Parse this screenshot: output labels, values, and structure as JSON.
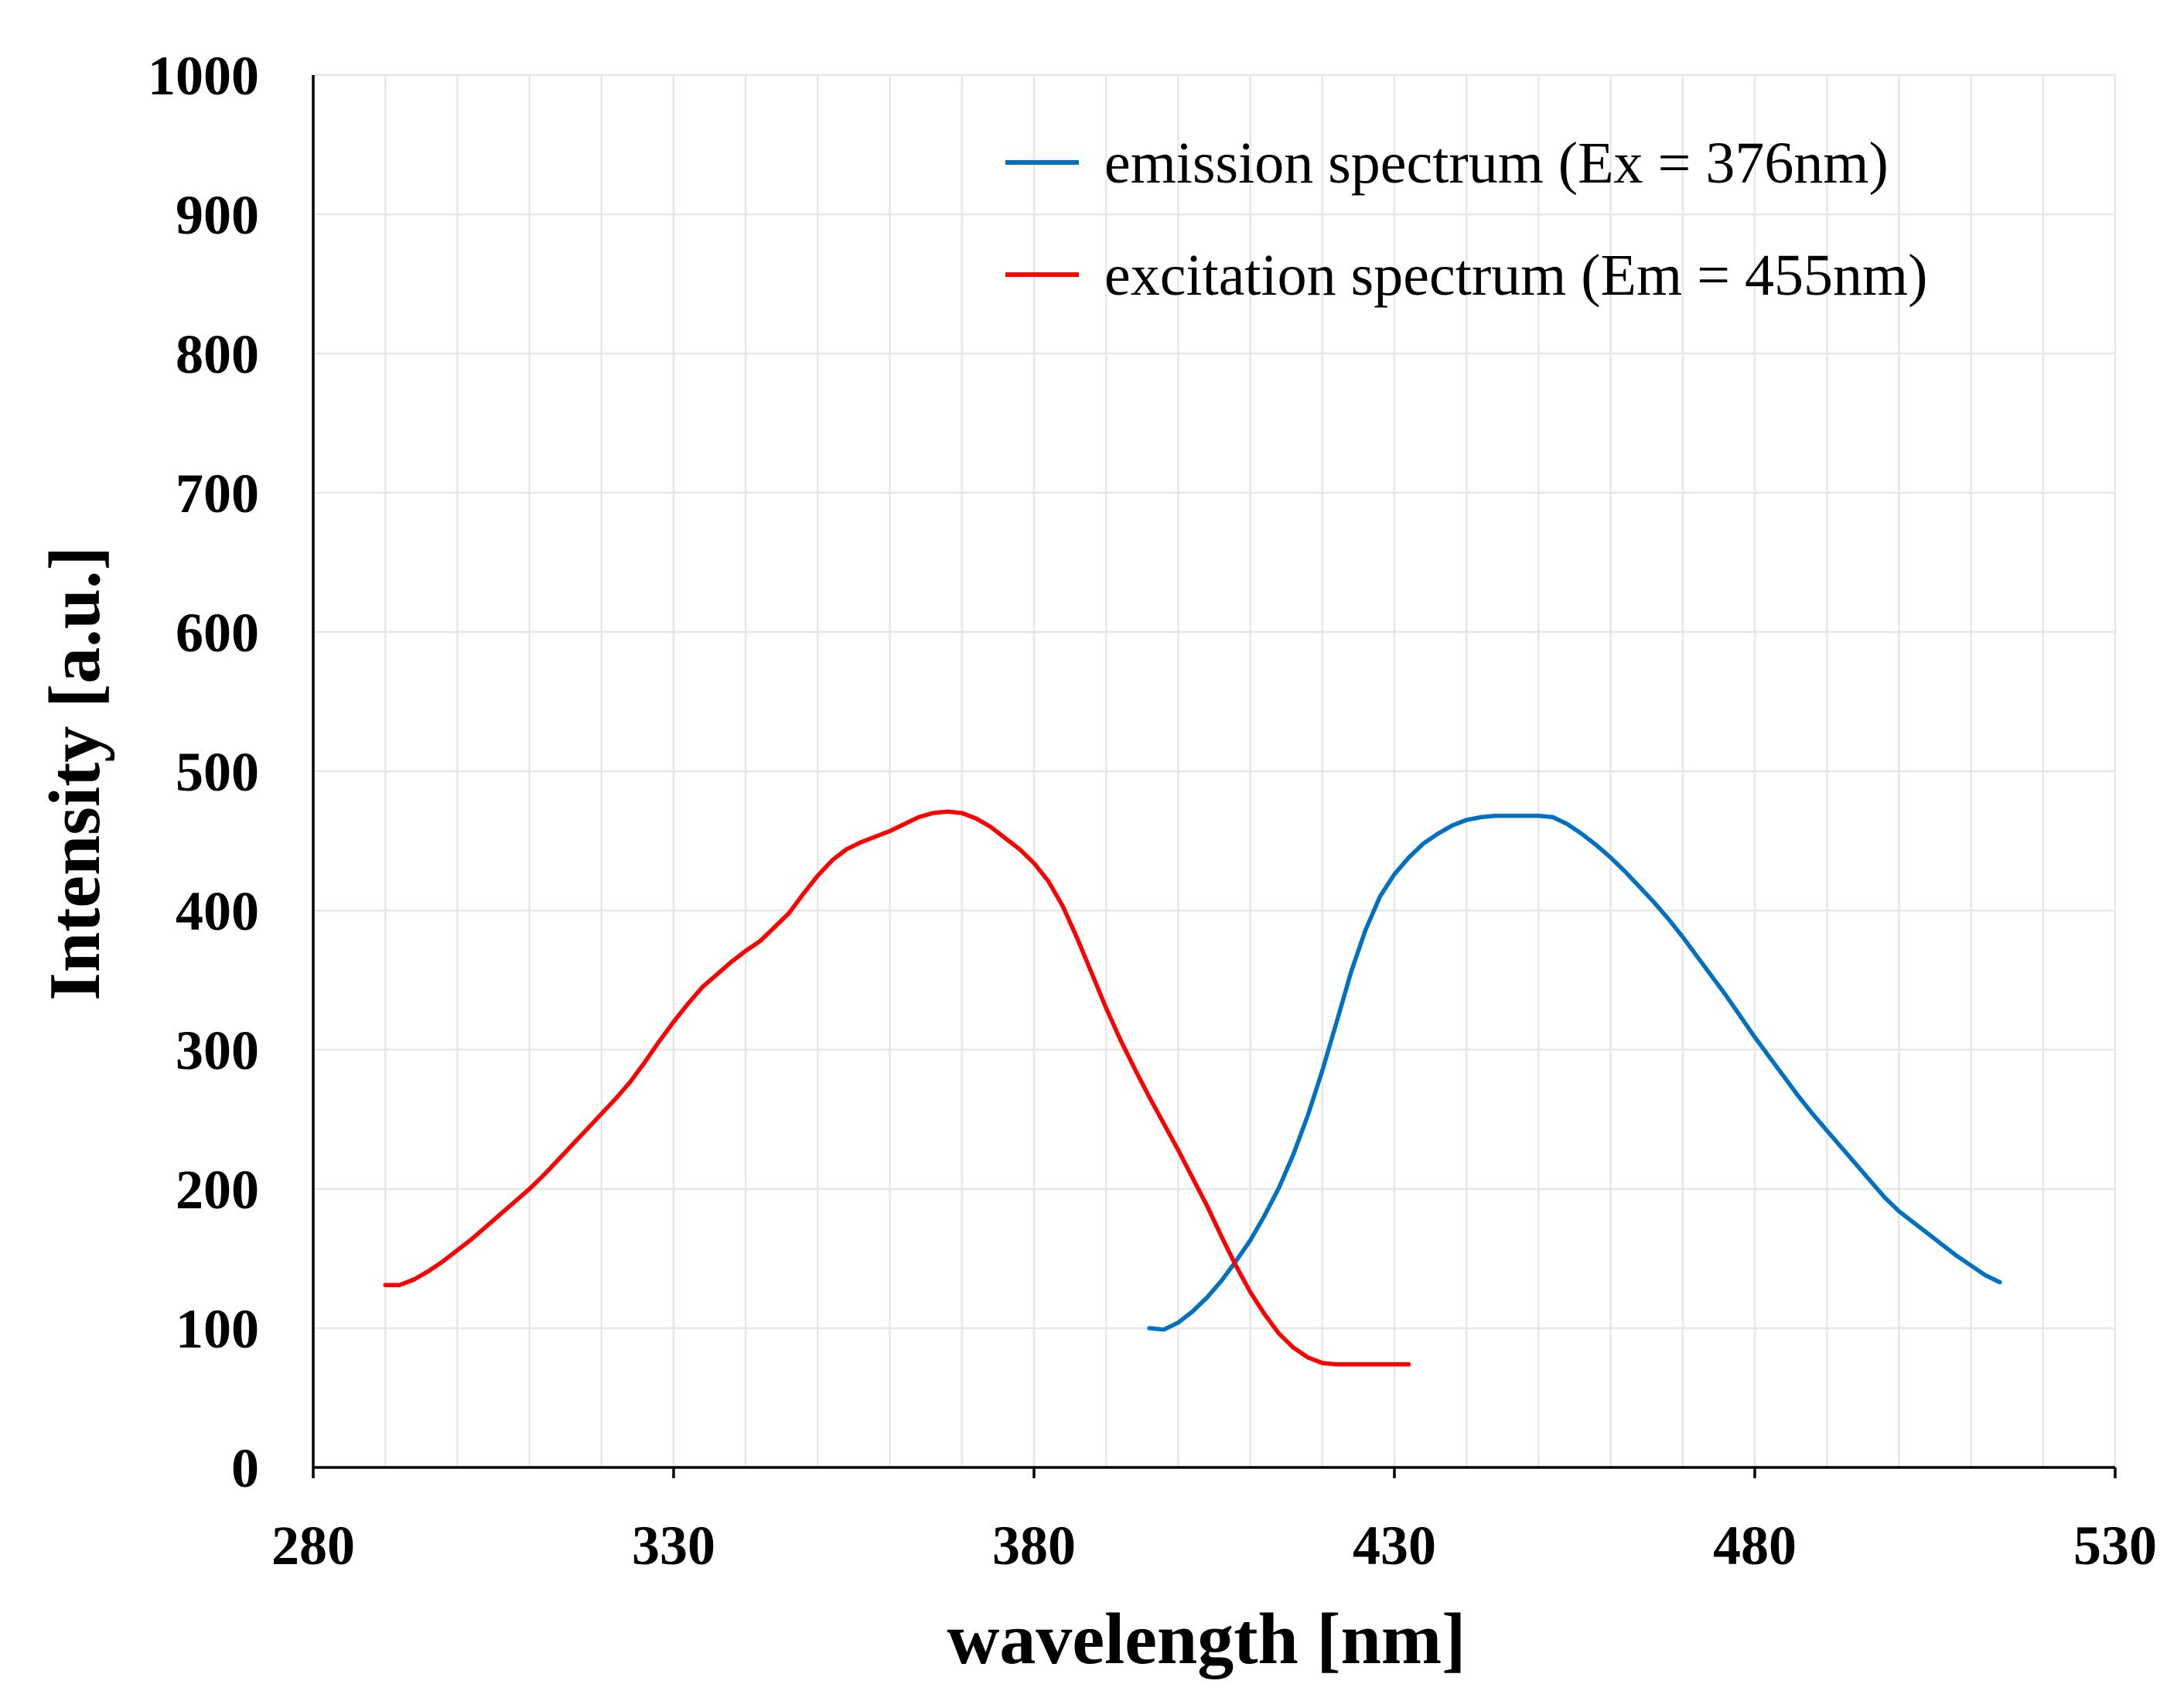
{
  "chart_data": {
    "type": "line",
    "title": "",
    "xlabel": "wavelength [nm]",
    "ylabel": "Intensity [a.u.]",
    "xlim": [
      280,
      530
    ],
    "ylim": [
      0,
      1000
    ],
    "x_major_ticks": [
      280,
      330,
      380,
      430,
      480,
      530
    ],
    "y_major_ticks": [
      0,
      100,
      200,
      300,
      400,
      500,
      600,
      700,
      800,
      900,
      1000
    ],
    "x_minor_step": 10,
    "grid": true,
    "legend_position": "top-right",
    "series": [
      {
        "name": "emission spectrum (Ex = 376nm)",
        "color": "#0070C0",
        "x": [
          396,
          398,
          400,
          402,
          404,
          406,
          408,
          410,
          412,
          414,
          416,
          418,
          420,
          422,
          424,
          426,
          428,
          430,
          432,
          434,
          436,
          438,
          440,
          442,
          444,
          446,
          448,
          450,
          452,
          454,
          456,
          458,
          460,
          462,
          464,
          466,
          468,
          470,
          472,
          474,
          476,
          478,
          480,
          482,
          484,
          486,
          488,
          490,
          492,
          494,
          496,
          498,
          500,
          502,
          504,
          506,
          508,
          510,
          512,
          514
        ],
        "y": [
          100,
          99,
          104,
          112,
          122,
          134,
          148,
          163,
          181,
          201,
          225,
          253,
          285,
          320,
          356,
          386,
          410,
          426,
          438,
          448,
          455,
          461,
          465,
          467,
          468,
          468,
          468,
          468,
          467,
          462,
          455,
          447,
          438,
          428,
          417,
          406,
          394,
          381,
          367,
          353,
          339,
          324,
          309,
          295,
          281,
          267,
          254,
          242,
          230,
          218,
          206,
          194,
          184,
          176,
          168,
          160,
          152,
          145,
          138,
          133
        ]
      },
      {
        "name": "excitation spectrum (Em = 455nm)",
        "color": "#FF0000",
        "x": [
          290,
          292,
          294,
          296,
          298,
          300,
          302,
          304,
          306,
          308,
          310,
          312,
          314,
          316,
          318,
          320,
          322,
          324,
          326,
          328,
          330,
          332,
          334,
          336,
          338,
          340,
          342,
          344,
          346,
          348,
          350,
          352,
          354,
          356,
          358,
          360,
          362,
          364,
          366,
          368,
          370,
          372,
          374,
          376,
          378,
          380,
          382,
          384,
          386,
          388,
          390,
          392,
          394,
          396,
          398,
          400,
          402,
          404,
          406,
          408,
          410,
          412,
          414,
          416,
          418,
          420,
          422,
          424,
          426,
          428,
          430,
          432
        ],
        "y": [
          131,
          131,
          135,
          141,
          148,
          156,
          164,
          173,
          182,
          191,
          200,
          210,
          221,
          232,
          243,
          254,
          265,
          277,
          291,
          306,
          320,
          333,
          345,
          354,
          363,
          371,
          378,
          388,
          398,
          412,
          425,
          436,
          444,
          449,
          453,
          457,
          462,
          467,
          470,
          471,
          470,
          466,
          460,
          452,
          444,
          434,
          421,
          403,
          380,
          355,
          330,
          307,
          286,
          266,
          247,
          228,
          208,
          188,
          166,
          145,
          126,
          110,
          96,
          86,
          79,
          75,
          74,
          74,
          74,
          74,
          74,
          74
        ]
      }
    ]
  }
}
